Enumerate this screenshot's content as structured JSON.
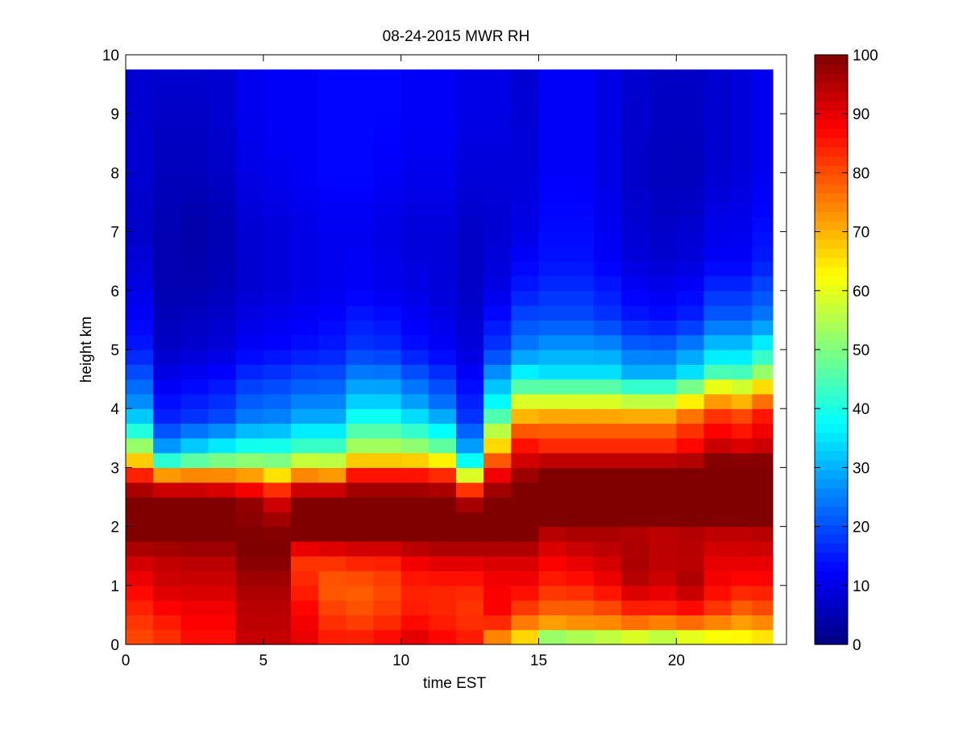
{
  "chart_data": {
    "type": "heatmap",
    "title": "08-24-2015 MWR RH",
    "xlabel": "time EST",
    "ylabel": "height km",
    "xlim": [
      0,
      24
    ],
    "ylim": [
      0,
      10
    ],
    "xticks": [
      0,
      5,
      10,
      15,
      20
    ],
    "yticks": [
      0,
      1,
      2,
      3,
      4,
      5,
      6,
      7,
      8,
      9,
      10
    ],
    "colorbar": {
      "min": 0,
      "max": 100,
      "ticks": [
        0,
        10,
        20,
        30,
        40,
        50,
        60,
        70,
        80,
        90,
        100
      ],
      "colormap": "jet"
    },
    "x_centers": [
      0.5,
      1.5,
      2.5,
      3.5,
      4.5,
      5.5,
      6.5,
      7.5,
      8.5,
      9.5,
      10.5,
      11.5,
      12.5,
      13.5,
      14.5,
      15.5,
      16.5,
      17.5,
      18.5,
      19.5,
      20.5,
      21.5,
      22.5,
      23.0
    ],
    "x_extent": [
      0,
      23.5
    ],
    "y_extent": [
      0,
      9.75
    ],
    "profiles": [
      {
        "h": [
          0.0,
          0.5,
          1.0,
          1.5,
          1.8,
          2.5,
          2.8,
          3.0,
          3.5,
          4.0,
          5.0,
          6.0,
          7.0,
          8.0,
          9.0,
          9.75
        ],
        "rh": [
          80,
          83,
          88,
          93,
          100,
          100,
          90,
          75,
          45,
          28,
          15,
          10,
          7,
          8,
          8,
          8
        ]
      },
      {
        "h": [
          0.0,
          0.5,
          1.0,
          1.5,
          1.8,
          2.4,
          2.7,
          2.9,
          3.2,
          3.8,
          5.0,
          6.0,
          7.0,
          8.0,
          9.0,
          9.75
        ],
        "rh": [
          82,
          86,
          92,
          94,
          100,
          100,
          90,
          70,
          32,
          16,
          7,
          5,
          5,
          6,
          7,
          8
        ]
      },
      {
        "h": [
          0.0,
          0.5,
          1.0,
          1.5,
          1.8,
          2.4,
          2.7,
          2.9,
          3.2,
          3.8,
          5.0,
          6.0,
          7.0,
          8.0,
          9.0,
          9.75
        ],
        "rh": [
          86,
          88,
          92,
          95,
          100,
          100,
          90,
          72,
          38,
          18,
          8,
          5,
          4,
          6,
          7,
          8
        ]
      },
      {
        "h": [
          0.0,
          0.5,
          1.0,
          1.5,
          1.8,
          2.4,
          2.7,
          2.9,
          3.2,
          3.8,
          5.0,
          6.0,
          7.0,
          8.0,
          9.0,
          9.75
        ],
        "rh": [
          86,
          88,
          92,
          95,
          100,
          100,
          88,
          72,
          42,
          20,
          9,
          6,
          5,
          7,
          8,
          8
        ]
      },
      {
        "h": [
          0.0,
          0.5,
          1.0,
          1.5,
          1.8,
          2.4,
          2.7,
          2.9,
          3.2,
          3.8,
          5.0,
          6.0,
          7.0,
          8.0,
          9.0,
          9.75
        ],
        "rh": [
          93,
          94,
          96,
          100,
          100,
          98,
          85,
          70,
          45,
          25,
          12,
          8,
          8,
          10,
          11,
          11
        ]
      },
      {
        "h": [
          0.0,
          0.5,
          1.0,
          1.5,
          1.8,
          2.3,
          2.6,
          2.8,
          3.2,
          3.8,
          5.0,
          6.0,
          7.0,
          8.0,
          9.0,
          9.75
        ],
        "rh": [
          93,
          94,
          96,
          100,
          100,
          95,
          85,
          70,
          45,
          26,
          13,
          9,
          9,
          11,
          12,
          12
        ]
      },
      {
        "h": [
          0.0,
          0.5,
          1.0,
          1.5,
          1.8,
          2.4,
          2.7,
          2.9,
          3.3,
          3.9,
          5.0,
          6.0,
          7.0,
          8.0,
          9.0,
          9.75
        ],
        "rh": [
          90,
          88,
          84,
          82,
          100,
          100,
          90,
          72,
          45,
          28,
          14,
          10,
          10,
          12,
          12,
          12
        ]
      },
      {
        "h": [
          0.0,
          0.5,
          1.0,
          1.5,
          1.8,
          2.4,
          2.7,
          2.9,
          3.3,
          3.9,
          5.0,
          6.0,
          7.0,
          8.0,
          9.0,
          9.75
        ],
        "rh": [
          86,
          82,
          78,
          84,
          100,
          100,
          90,
          70,
          45,
          28,
          15,
          11,
          11,
          13,
          13,
          13
        ]
      },
      {
        "h": [
          0.0,
          0.5,
          1.0,
          1.5,
          1.8,
          2.5,
          2.8,
          3.0,
          3.4,
          4.0,
          5.0,
          6.0,
          7.0,
          8.0,
          9.0,
          9.75
        ],
        "rh": [
          86,
          80,
          78,
          86,
          100,
          100,
          92,
          75,
          52,
          35,
          18,
          12,
          11,
          13,
          13,
          13
        ]
      },
      {
        "h": [
          0.0,
          0.5,
          1.0,
          1.5,
          1.8,
          2.5,
          2.8,
          3.0,
          3.4,
          4.0,
          5.0,
          6.0,
          7.0,
          8.0,
          9.0,
          9.75
        ],
        "rh": [
          88,
          82,
          80,
          86,
          100,
          100,
          92,
          75,
          52,
          35,
          17,
          11,
          10,
          12,
          13,
          13
        ]
      },
      {
        "h": [
          0.0,
          0.5,
          1.0,
          1.5,
          1.8,
          2.5,
          2.8,
          3.0,
          3.4,
          4.0,
          5.0,
          6.0,
          7.0,
          8.0,
          9.0,
          9.75
        ],
        "rh": [
          92,
          85,
          84,
          90,
          100,
          100,
          92,
          75,
          50,
          30,
          14,
          10,
          9,
          11,
          12,
          12
        ]
      },
      {
        "h": [
          0.0,
          0.5,
          1.0,
          1.5,
          1.8,
          2.5,
          2.8,
          3.0,
          3.4,
          4.0,
          5.0,
          6.0,
          7.0,
          8.0,
          9.0,
          9.75
        ],
        "rh": [
          88,
          84,
          84,
          92,
          100,
          100,
          90,
          72,
          45,
          25,
          12,
          9,
          9,
          11,
          12,
          12
        ]
      },
      {
        "h": [
          0.0,
          0.5,
          1.0,
          1.5,
          1.8,
          2.3,
          2.6,
          2.8,
          3.2,
          3.8,
          5.0,
          6.0,
          7.0,
          8.0,
          9.0,
          9.75
        ],
        "rh": [
          86,
          82,
          84,
          92,
          100,
          100,
          85,
          65,
          32,
          18,
          9,
          7,
          7,
          9,
          10,
          10
        ]
      },
      {
        "h": [
          0.0,
          0.5,
          1.0,
          1.5,
          1.8,
          2.5,
          2.8,
          3.1,
          3.4,
          4.0,
          5.0,
          6.0,
          7.0,
          8.0,
          9.0,
          9.75
        ],
        "rh": [
          70,
          88,
          88,
          92,
          100,
          100,
          92,
          80,
          65,
          40,
          18,
          10,
          8,
          9,
          10,
          10
        ]
      },
      {
        "h": [
          0.0,
          0.5,
          1.0,
          1.5,
          1.8,
          2.7,
          3.0,
          3.3,
          3.6,
          4.0,
          4.5,
          5.0,
          6.0,
          7.0,
          8.0,
          9.75
        ],
        "rh": [
          62,
          80,
          88,
          92,
          100,
          100,
          95,
          88,
          80,
          65,
          40,
          25,
          15,
          10,
          9,
          8
        ]
      },
      {
        "h": [
          0.0,
          0.3,
          0.6,
          1.0,
          1.4,
          1.9,
          2.0,
          3.0,
          3.3,
          3.8,
          4.2,
          4.6,
          5.5,
          6.5,
          8.0,
          9.75
        ],
        "rh": [
          40,
          70,
          78,
          84,
          88,
          95,
          100,
          100,
          85,
          75,
          55,
          35,
          20,
          14,
          12,
          12
        ]
      },
      {
        "h": [
          0.0,
          0.3,
          0.6,
          1.0,
          1.4,
          1.9,
          2.0,
          3.0,
          3.3,
          3.8,
          4.2,
          4.6,
          5.5,
          6.5,
          8.0,
          9.75
        ],
        "rh": [
          42,
          72,
          78,
          85,
          90,
          96,
          100,
          100,
          85,
          75,
          55,
          35,
          20,
          14,
          12,
          12
        ]
      },
      {
        "h": [
          0.0,
          0.3,
          0.6,
          1.0,
          1.4,
          1.9,
          2.0,
          3.0,
          3.3,
          3.8,
          4.2,
          4.6,
          5.5,
          6.5,
          8.0,
          9.75
        ],
        "rh": [
          45,
          72,
          80,
          88,
          92,
          96,
          100,
          100,
          85,
          75,
          55,
          35,
          18,
          12,
          10,
          10
        ]
      },
      {
        "h": [
          0.0,
          0.3,
          0.6,
          1.0,
          1.4,
          1.9,
          2.0,
          3.0,
          3.3,
          3.8,
          4.2,
          4.6,
          5.5,
          6.5,
          8.0,
          9.75
        ],
        "rh": [
          48,
          74,
          84,
          94,
          96,
          95,
          100,
          100,
          85,
          75,
          52,
          30,
          15,
          9,
          7,
          8
        ]
      },
      {
        "h": [
          0.0,
          0.3,
          0.6,
          1.0,
          1.4,
          1.9,
          2.0,
          3.0,
          3.3,
          3.8,
          4.2,
          4.6,
          5.5,
          6.5,
          8.0,
          9.75
        ],
        "rh": [
          45,
          72,
          84,
          92,
          94,
          94,
          100,
          100,
          85,
          75,
          52,
          30,
          14,
          8,
          6,
          7
        ]
      },
      {
        "h": [
          0.0,
          0.3,
          0.6,
          1.0,
          1.4,
          1.9,
          2.0,
          3.0,
          3.3,
          3.8,
          4.2,
          4.6,
          5.5,
          6.5,
          8.0,
          9.75
        ],
        "rh": [
          50,
          74,
          86,
          96,
          94,
          95,
          100,
          100,
          88,
          80,
          60,
          35,
          16,
          9,
          6,
          7
        ]
      },
      {
        "h": [
          0.0,
          0.3,
          0.6,
          1.0,
          1.4,
          1.9,
          2.0,
          3.1,
          3.4,
          3.9,
          4.3,
          4.7,
          5.5,
          6.5,
          8.0,
          9.75
        ],
        "rh": [
          55,
          72,
          82,
          88,
          90,
          94,
          100,
          100,
          92,
          82,
          65,
          40,
          22,
          12,
          8,
          8
        ]
      },
      {
        "h": [
          0.0,
          0.3,
          0.6,
          1.0,
          1.4,
          1.9,
          2.0,
          3.1,
          3.4,
          3.9,
          4.3,
          4.7,
          5.5,
          6.5,
          8.0,
          9.75
        ],
        "rh": [
          58,
          70,
          78,
          86,
          90,
          94,
          100,
          100,
          90,
          80,
          62,
          40,
          22,
          12,
          9,
          9
        ]
      },
      {
        "h": [
          0.0,
          0.3,
          0.6,
          1.0,
          1.4,
          1.9,
          2.0,
          3.1,
          3.4,
          3.9,
          4.3,
          4.7,
          5.5,
          6.5,
          8.0,
          9.75
        ],
        "rh": [
          60,
          72,
          80,
          86,
          90,
          95,
          100,
          100,
          92,
          85,
          70,
          48,
          25,
          15,
          11,
          11
        ]
      }
    ]
  }
}
